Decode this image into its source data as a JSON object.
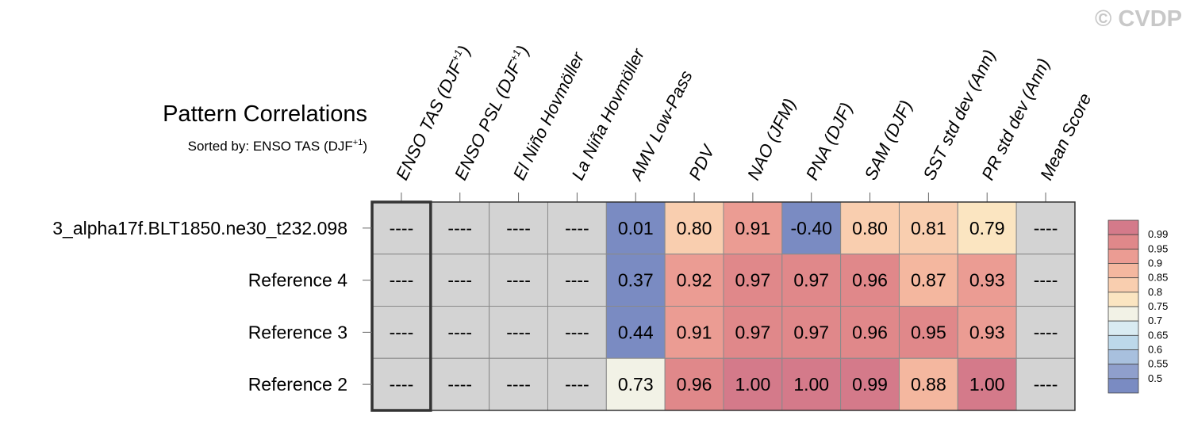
{
  "watermark": "© CVDP",
  "chart_data": {
    "type": "heatmap",
    "title": "Pattern Correlations",
    "subtitle_prefix": "Sorted by: ENSO TAS (DJF",
    "subtitle_sup": "+1",
    "subtitle_suffix": ")",
    "columns": [
      {
        "label": "ENSO TAS (DJF",
        "sup": "+1",
        "suffix": ")"
      },
      {
        "label": "ENSO PSL (DJF",
        "sup": "+1",
        "suffix": ")"
      },
      {
        "label": "El Niño Hovmöller",
        "sup": "",
        "suffix": ""
      },
      {
        "label": "La Niña Hovmöller",
        "sup": "",
        "suffix": ""
      },
      {
        "label": "AMV Low-Pass",
        "sup": "",
        "suffix": ""
      },
      {
        "label": "PDV",
        "sup": "",
        "suffix": ""
      },
      {
        "label": "NAO (JFM)",
        "sup": "",
        "suffix": ""
      },
      {
        "label": "PNA (DJF)",
        "sup": "",
        "suffix": ""
      },
      {
        "label": "SAM (DJF)",
        "sup": "",
        "suffix": ""
      },
      {
        "label": "SST std dev (Ann)",
        "sup": "",
        "suffix": ""
      },
      {
        "label": "PR std dev (Ann)",
        "sup": "",
        "suffix": ""
      },
      {
        "label": "Mean Score",
        "sup": "",
        "suffix": ""
      }
    ],
    "rows": [
      {
        "label": "3_alpha17f.BLT1850.ne30_t232.098",
        "values": [
          null,
          null,
          null,
          null,
          0.01,
          0.8,
          0.91,
          -0.4,
          0.8,
          0.81,
          0.79,
          null
        ],
        "text": [
          "----",
          "----",
          "----",
          "----",
          "0.01",
          "0.80",
          "0.91",
          "-0.40",
          "0.80",
          "0.81",
          "0.79",
          "----"
        ]
      },
      {
        "label": "Reference 4",
        "values": [
          null,
          null,
          null,
          null,
          0.37,
          0.92,
          0.97,
          0.97,
          0.96,
          0.87,
          0.93,
          null
        ],
        "text": [
          "----",
          "----",
          "----",
          "----",
          "0.37",
          "0.92",
          "0.97",
          "0.97",
          "0.96",
          "0.87",
          "0.93",
          "----"
        ]
      },
      {
        "label": "Reference 3",
        "values": [
          null,
          null,
          null,
          null,
          0.44,
          0.91,
          0.97,
          0.97,
          0.96,
          0.95,
          0.93,
          null
        ],
        "text": [
          "----",
          "----",
          "----",
          "----",
          "0.44",
          "0.91",
          "0.97",
          "0.97",
          "0.96",
          "0.95",
          "0.93",
          "----"
        ]
      },
      {
        "label": "Reference 2",
        "values": [
          null,
          null,
          null,
          null,
          0.73,
          0.96,
          1.0,
          1.0,
          0.99,
          0.88,
          1.0,
          null
        ],
        "text": [
          "----",
          "----",
          "----",
          "----",
          "0.73",
          "0.96",
          "1.00",
          "1.00",
          "0.99",
          "0.88",
          "1.00",
          "----"
        ]
      }
    ],
    "highlight_column": 0,
    "missing_color": "#d3d3d3",
    "colorbar": {
      "labels": [
        "0.99",
        "0.95",
        "0.9",
        "0.85",
        "0.8",
        "0.75",
        "0.7",
        "0.65",
        "0.6",
        "0.55",
        "0.5"
      ],
      "colors": [
        "#d47a8a",
        "#e0888a",
        "#eb9c93",
        "#f4b79f",
        "#f9ceaf",
        "#fbe5c1",
        "#f2f2e6",
        "#d9ebf2",
        "#bcd8ea",
        "#a8c0de",
        "#8f9fcc",
        "#7a8bc2"
      ]
    }
  }
}
